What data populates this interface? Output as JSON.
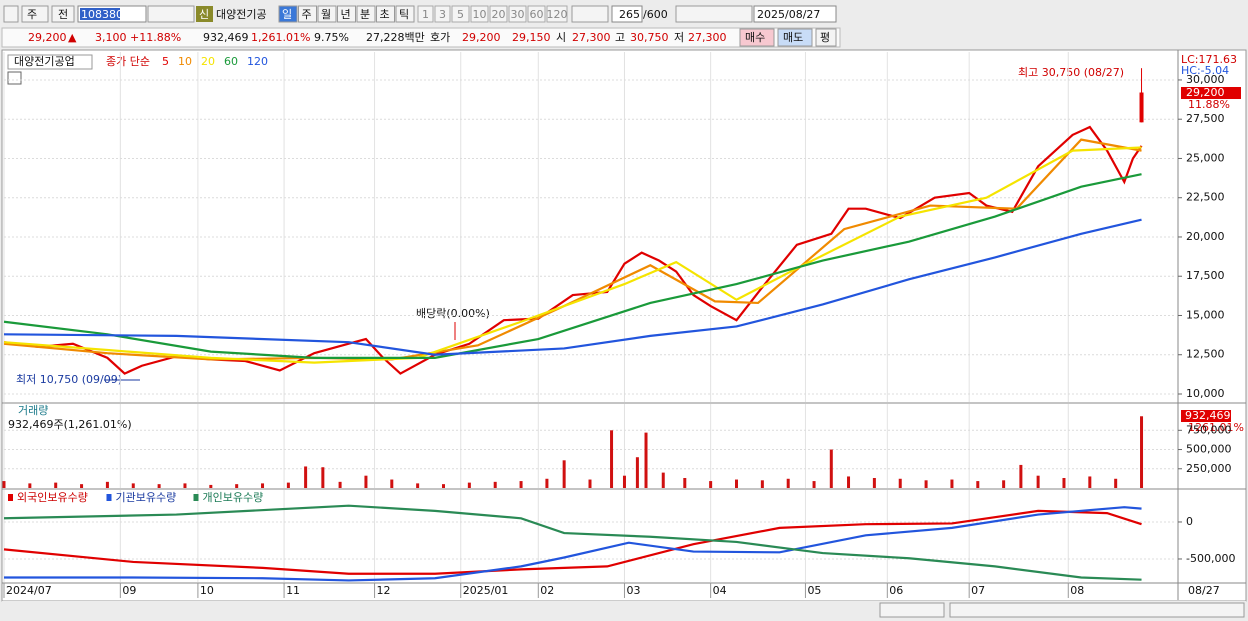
{
  "toolbar": {
    "market": "주",
    "scope": "전",
    "code": "108380",
    "new": "신",
    "name": "대양전기공",
    "periods": [
      "일",
      "주",
      "월",
      "년",
      "분",
      "초",
      "틱"
    ],
    "intervals": [
      "1",
      "3",
      "5",
      "10",
      "20",
      "30",
      "60",
      "120"
    ],
    "count": "265",
    "max": "/600",
    "date": "2025/08/27"
  },
  "info_bar": {
    "price": "29,200",
    "arrow": "▲",
    "change": "3,100",
    "rate": "+11.88%",
    "volume": "932,469",
    "volume_rate": "1,261.01%",
    "turnover": "9.75%",
    "amount": "27,228백만",
    "quote_label": "호가",
    "ask": "29,200",
    "bid": "29,150",
    "open_label": "시",
    "open": "27,300",
    "high_label": "고",
    "high": "30,750",
    "low_label": "저",
    "low": "27,300",
    "buy": "매수",
    "sell": "매도",
    "avg": "평"
  },
  "chart_data": [
    {
      "type": "line",
      "title": "대양전기공업",
      "legend_prefix": "종가 단순",
      "xlim": [
        0,
        272
      ],
      "ylim": [
        9490,
        31780
      ],
      "yticks": [
        {
          "value": 10000,
          "label": "10,000"
        },
        {
          "value": 12500,
          "label": "12,500"
        },
        {
          "value": 15000,
          "label": "15,000"
        },
        {
          "value": 17500,
          "label": "17,500"
        },
        {
          "value": 20000,
          "label": "20,000"
        },
        {
          "value": 22500,
          "label": "22,500"
        },
        {
          "value": 25000,
          "label": "25,000"
        },
        {
          "value": 27500,
          "label": "27,500"
        },
        {
          "value": 30000,
          "label": "30,000"
        }
      ],
      "series": [
        {
          "name": "5",
          "color": "#e00000",
          "x": [
            0,
            8,
            16,
            24,
            28,
            32,
            40,
            48,
            56,
            64,
            72,
            80,
            84,
            88,
            92,
            100,
            108,
            116,
            124,
            132,
            140,
            144,
            148,
            152,
            156,
            160,
            164,
            170,
            176,
            184,
            192,
            196,
            200,
            208,
            216,
            224,
            228,
            234,
            240,
            248,
            252,
            256,
            260,
            262,
            264
          ],
          "values": [
            13300,
            13000,
            13200,
            12300,
            11300,
            11800,
            12400,
            12200,
            12100,
            11500,
            12600,
            13200,
            13500,
            12300,
            11300,
            12500,
            13200,
            14700,
            14800,
            16300,
            16500,
            18300,
            19000,
            18500,
            17800,
            16300,
            15600,
            14700,
            16800,
            19500,
            20200,
            21800,
            21800,
            21200,
            22500,
            22800,
            22000,
            21600,
            24500,
            26500,
            27000,
            25500,
            23500,
            25000,
            25800
          ]
        },
        {
          "name": "10",
          "color": "#f08a00",
          "x": [
            0,
            24,
            48,
            72,
            90,
            110,
            130,
            150,
            165,
            175,
            195,
            215,
            235,
            250,
            264
          ],
          "values": [
            13200,
            12600,
            12200,
            12300,
            12200,
            13100,
            15600,
            18200,
            15900,
            15800,
            20500,
            22000,
            21800,
            26200,
            25500
          ]
        },
        {
          "name": "20",
          "color": "#f5e400",
          "x": [
            0,
            24,
            48,
            72,
            96,
            120,
            144,
            156,
            170,
            184,
            208,
            228,
            248,
            264
          ],
          "values": [
            13300,
            12800,
            12300,
            12000,
            12300,
            14600,
            17000,
            18400,
            16000,
            18000,
            21300,
            22500,
            25500,
            25700
          ]
        },
        {
          "name": "60",
          "color": "#1a9a3a",
          "x": [
            0,
            24,
            48,
            72,
            100,
            124,
            150,
            170,
            190,
            210,
            230,
            250,
            264
          ],
          "values": [
            14600,
            13800,
            12700,
            12300,
            12300,
            13500,
            15800,
            17000,
            18500,
            19700,
            21300,
            23200,
            24000
          ]
        },
        {
          "name": "120",
          "color": "#2255dd",
          "x": [
            0,
            40,
            80,
            100,
            130,
            150,
            170,
            190,
            210,
            230,
            250,
            264
          ],
          "values": [
            13800,
            13700,
            13300,
            12500,
            12900,
            13700,
            14300,
            15700,
            17300,
            18700,
            20200,
            21100
          ]
        }
      ],
      "candle": {
        "open": 27300,
        "high": 30750,
        "low": 27300,
        "close": 29200
      },
      "high_note": "최고 30,750 (08/27)",
      "low_note": "최저 10,750 (09/09)",
      "dividend_note": "배당락(0.00%)",
      "lc": "LC:171.63",
      "hc": "HC:-5.04",
      "last_price": "29,200",
      "last_rate": "11.88%"
    },
    {
      "type": "bar",
      "title": "거래량",
      "subtitle": "932,469주(1,261.01%)",
      "color": "#d01010",
      "xlim": [
        0,
        272
      ],
      "ylim": [
        0,
        1092000
      ],
      "yticks": [
        {
          "value": 250000,
          "label": "250,000"
        },
        {
          "value": 500000,
          "label": "500,000"
        },
        {
          "value": 750000,
          "label": "750,000"
        }
      ],
      "x": [
        0,
        6,
        12,
        18,
        24,
        30,
        36,
        42,
        48,
        54,
        60,
        66,
        70,
        74,
        78,
        84,
        90,
        96,
        102,
        108,
        114,
        120,
        126,
        130,
        136,
        141,
        144,
        147,
        149,
        153,
        158,
        164,
        170,
        176,
        182,
        188,
        192,
        196,
        202,
        208,
        214,
        220,
        226,
        232,
        236,
        240,
        246,
        252,
        258,
        264
      ],
      "values": [
        90000,
        60000,
        70000,
        50000,
        80000,
        60000,
        50000,
        60000,
        40000,
        50000,
        60000,
        70000,
        280000,
        270000,
        80000,
        160000,
        110000,
        60000,
        50000,
        70000,
        80000,
        90000,
        120000,
        360000,
        110000,
        750000,
        160000,
        400000,
        720000,
        200000,
        130000,
        90000,
        110000,
        100000,
        120000,
        90000,
        500000,
        150000,
        130000,
        120000,
        100000,
        110000,
        90000,
        100000,
        300000,
        160000,
        130000,
        150000,
        120000,
        932469
      ],
      "last_label": "932,469",
      "last_rate": "1261.01%"
    },
    {
      "type": "line",
      "xlim": [
        0,
        272
      ],
      "ylim": [
        -811000,
        432000
      ],
      "yticks": [
        0,
        {
          "value": -500000,
          "label": "-500,000"
        }
      ],
      "xticks": [
        {
          "value": 0,
          "label": "2024/07"
        },
        {
          "value": 27,
          "label": "09"
        },
        {
          "value": 45,
          "label": "10"
        },
        {
          "value": 65,
          "label": "11"
        },
        {
          "value": 86,
          "label": "12"
        },
        {
          "value": 106,
          "label": "2025/01"
        },
        {
          "value": 124,
          "label": "02"
        },
        {
          "value": 144,
          "label": "03"
        },
        {
          "value": 164,
          "label": "04"
        },
        {
          "value": 186,
          "label": "05"
        },
        {
          "value": 205,
          "label": "06"
        },
        {
          "value": 224,
          "label": "07"
        },
        {
          "value": 247,
          "label": "08"
        }
      ],
      "last_date": "08/27",
      "series": [
        {
          "name": "외국인보유수량",
          "color": "#e00000",
          "x": [
            0,
            30,
            60,
            80,
            100,
            120,
            140,
            160,
            180,
            200,
            220,
            240,
            256,
            264
          ],
          "values": [
            -370000,
            -540000,
            -620000,
            -700000,
            -700000,
            -640000,
            -600000,
            -300000,
            -80000,
            -30000,
            -20000,
            150000,
            120000,
            -30000
          ]
        },
        {
          "name": "기관보유수량",
          "color": "#2255dd",
          "x": [
            0,
            30,
            60,
            80,
            100,
            120,
            130,
            145,
            160,
            180,
            200,
            220,
            240,
            260,
            264
          ],
          "values": [
            -750000,
            -750000,
            -760000,
            -790000,
            -760000,
            -600000,
            -480000,
            -280000,
            -400000,
            -410000,
            -180000,
            -80000,
            100000,
            200000,
            180000
          ]
        },
        {
          "name": "개인보유수량",
          "color": "#2a8a55",
          "x": [
            0,
            40,
            80,
            100,
            120,
            130,
            150,
            170,
            190,
            210,
            230,
            250,
            264
          ],
          "values": [
            50000,
            100000,
            220000,
            150000,
            50000,
            -150000,
            -200000,
            -270000,
            -420000,
            -490000,
            -600000,
            -750000,
            -780000
          ]
        }
      ]
    }
  ]
}
